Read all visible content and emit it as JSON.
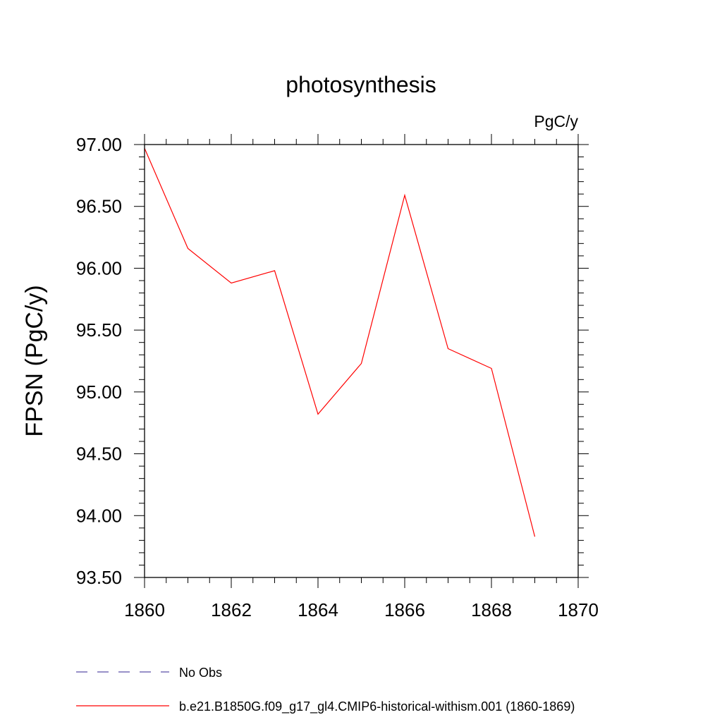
{
  "chart_data": {
    "type": "line",
    "title": "photosynthesis",
    "units_label": "PgC/y",
    "ylabel": "FPSN  (PgC/y)",
    "xlabel": "",
    "xlim": [
      1860,
      1870
    ],
    "ylim": [
      93.5,
      97.0
    ],
    "x_ticks": [
      "1860",
      "1862",
      "1864",
      "1866",
      "1868",
      "1870"
    ],
    "y_ticks": [
      "93.50",
      "94.00",
      "94.50",
      "95.00",
      "95.50",
      "96.00",
      "96.50",
      "97.00"
    ],
    "grid": false,
    "legend_placement": "bottom",
    "series": [
      {
        "name": "b.e21.B1850G.f09_g17_gl4.CMIP6-historical-withism.001 (1860-1869)",
        "color": "#ff0000",
        "style": "solid",
        "x": [
          1860,
          1861,
          1862,
          1863,
          1864,
          1865,
          1866,
          1867,
          1868,
          1869
        ],
        "y": [
          96.97,
          96.16,
          95.88,
          95.98,
          94.82,
          95.23,
          96.59,
          95.35,
          95.19,
          93.83
        ]
      }
    ],
    "legend": [
      {
        "label": "No Obs",
        "color": "#5a4fa8",
        "style": "dashed"
      },
      {
        "label": "b.e21.B1850G.f09_g17_gl4.CMIP6-historical-withism.001 (1860-1869)",
        "color": "#ff0000",
        "style": "solid"
      }
    ]
  }
}
